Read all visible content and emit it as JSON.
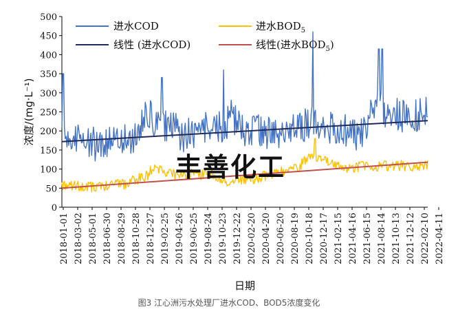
{
  "chart_data": {
    "type": "line",
    "title": "",
    "xlabel": "日期",
    "ylabel": "浓度/(mg·L⁻¹)",
    "ylim": [
      0,
      500
    ],
    "y_ticks": [
      0,
      50,
      100,
      150,
      200,
      250,
      300,
      350,
      400,
      450,
      500
    ],
    "x_tick_labels": [
      "2018-01-01",
      "2018-03-02",
      "2018-05-01",
      "2018-06-30",
      "2018-08-29",
      "2018-10-28",
      "2018-12-27",
      "2019-02-25",
      "2019-04-26",
      "2019-06-25",
      "2019-08-24",
      "2019-10-23",
      "2019-12-22",
      "2020-02-20",
      "2020-04-20",
      "2020-06-20",
      "2020-08-19",
      "2020-10-18",
      "2020-12-17",
      "2021-02-15",
      "2021-04-16",
      "2021-06-15",
      "2021-08-14",
      "2021-10-13",
      "2021-12-12",
      "2022-02-10",
      "2022-04-11"
    ],
    "x_domain_days": [
      0,
      1720
    ],
    "legend_position": "top",
    "colors": {
      "cod": "#4472c4",
      "bod": "#ffc000",
      "cod_trend": "#1f2a5c",
      "bod_trend": "#c0504d"
    },
    "series": [
      {
        "name": "进水COD",
        "key": "cod",
        "kind": "raw-daily",
        "anchors_x_days": [
          0,
          10,
          20,
          40,
          60,
          90,
          120,
          160,
          200,
          250,
          300,
          350,
          400,
          430,
          460,
          500,
          540,
          560,
          600,
          650,
          700,
          730,
          760,
          800,
          850,
          900,
          950,
          1000,
          1050,
          1100,
          1150,
          1180,
          1210,
          1240,
          1280,
          1320,
          1360,
          1400,
          1430,
          1470,
          1500,
          1530,
          1560,
          1600,
          1650,
          1700,
          1720
        ],
        "anchors_values": [
          190,
          180,
          160,
          175,
          180,
          185,
          170,
          165,
          175,
          170,
          175,
          180,
          250,
          225,
          210,
          215,
          200,
          185,
          190,
          200,
          210,
          205,
          210,
          240,
          205,
          200,
          195,
          200,
          195,
          205,
          215,
          230,
          225,
          220,
          195,
          200,
          195,
          190,
          210,
          270,
          265,
          240,
          245,
          240,
          235,
          250,
          245
        ],
        "noise_amplitude": 45,
        "spikes": [
          {
            "x": 5,
            "value": 350
          },
          {
            "x": 470,
            "value": 340
          },
          {
            "x": 760,
            "value": 360
          },
          {
            "x": 1180,
            "value": 460
          },
          {
            "x": 1490,
            "value": 415
          },
          {
            "x": 1505,
            "value": 415
          }
        ]
      },
      {
        "name": "进水BOD5",
        "key": "bod",
        "kind": "raw-daily",
        "anchors_x_days": [
          0,
          60,
          120,
          200,
          300,
          400,
          430,
          460,
          500,
          560,
          600,
          700,
          760,
          800,
          900,
          1000,
          1100,
          1150,
          1180,
          1210,
          1260,
          1320,
          1360,
          1400,
          1450,
          1500,
          1560,
          1600,
          1650,
          1700,
          1720
        ],
        "anchors_values": [
          60,
          55,
          52,
          56,
          62,
          82,
          105,
          100,
          90,
          82,
          88,
          85,
          70,
          68,
          75,
          88,
          100,
          125,
          140,
          130,
          115,
          110,
          100,
          108,
          105,
          110,
          105,
          110,
          105,
          110,
          115
        ],
        "noise_amplitude": 14,
        "spikes": [
          {
            "x": 1190,
            "value": 180
          }
        ]
      },
      {
        "name": "线性 (进水COD)",
        "key": "cod_trend",
        "kind": "linear",
        "x": [
          0,
          1720
        ],
        "values": [
          172,
          227
        ]
      },
      {
        "name": "线性(进水BOD5)",
        "key": "bod_trend",
        "kind": "linear",
        "x": [
          0,
          1720
        ],
        "values": [
          50,
          118
        ]
      }
    ]
  },
  "legend": [
    {
      "key": "cod",
      "prefix": "进水COD",
      "sub": ""
    },
    {
      "key": "bod",
      "prefix": "进水BOD",
      "sub": "5"
    },
    {
      "key": "cod_trend",
      "prefix": "线性 (进水COD)",
      "sub": ""
    },
    {
      "key": "bod_trend",
      "prefix": "线性(进水BOD",
      "sub": "5",
      "suffix": ")"
    }
  ],
  "watermark": "丰善化工",
  "caption": "图3 江心洲污水处理厂进水COD、BOD5浓度变化"
}
